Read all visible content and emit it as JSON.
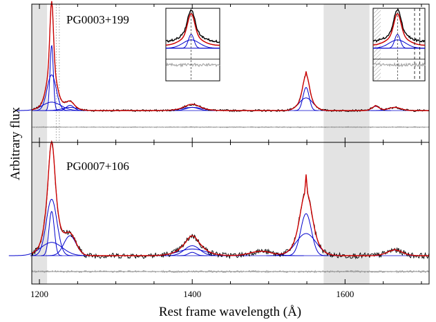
{
  "chart_data": {
    "type": "line",
    "ylabel": "Arbitrary flux",
    "xlabel": "Rest frame wavelength (Å)",
    "xlim": [
      1190,
      1710
    ],
    "xticks": [
      1200,
      1400,
      1600
    ],
    "shaded_regions": [
      [
        1190,
        1210
      ],
      [
        1572,
        1632
      ]
    ],
    "panels": [
      {
        "name": "PG0003+199",
        "series_colors": {
          "observed": "#000000",
          "model": "#cc0000",
          "components": "#0000cc",
          "residual": "#a6a6a6"
        },
        "lines": [
          {
            "center": 1216,
            "peak": 1.0,
            "components": [
              {
                "amp": 0.62,
                "width": 2.2
              },
              {
                "amp": 0.34,
                "width": 6
              },
              {
                "amp": 0.08,
                "width": 12
              }
            ]
          },
          {
            "center": 1240,
            "peak": 0.07,
            "components": [
              {
                "amp": 0.05,
                "width": 5
              },
              {
                "amp": 0.03,
                "width": 10
              }
            ]
          },
          {
            "center": 1400,
            "peak": 0.05,
            "components": [
              {
                "amp": 0.03,
                "width": 8
              },
              {
                "amp": 0.03,
                "width": 14
              }
            ]
          },
          {
            "center": 1549,
            "peak": 0.38,
            "components": [
              {
                "amp": 0.22,
                "width": 4
              },
              {
                "amp": 0.12,
                "width": 9
              }
            ]
          },
          {
            "center": 1640,
            "peak": 0.05,
            "components": [
              {
                "amp": 0.04,
                "width": 5
              }
            ]
          },
          {
            "center": 1665,
            "peak": 0.03,
            "components": [
              {
                "amp": 0.03,
                "width": 8
              }
            ]
          }
        ]
      },
      {
        "name": "PG0007+106",
        "series_colors": {
          "observed": "#000000",
          "model": "#cc0000",
          "components": "#0000cc",
          "residual": "#a6a6a6"
        },
        "lines": [
          {
            "center": 1216,
            "peak": 1.0,
            "components": [
              {
                "amp": 0.51,
                "width": 7
              },
              {
                "amp": 0.4,
                "width": 3.5
              },
              {
                "amp": 0.12,
                "width": 14
              }
            ]
          },
          {
            "center": 1240,
            "peak": 0.2,
            "components": [
              {
                "amp": 0.18,
                "width": 8
              }
            ]
          },
          {
            "center": 1400,
            "peak": 0.18,
            "components": [
              {
                "amp": 0.09,
                "width": 10
              },
              {
                "amp": 0.06,
                "width": 18
              },
              {
                "amp": 0.03,
                "width": 5
              }
            ]
          },
          {
            "center": 1490,
            "peak": 0.04,
            "components": [
              {
                "amp": 0.04,
                "width": 14
              }
            ]
          },
          {
            "center": 1549,
            "peak": 0.75,
            "components": [
              {
                "amp": 0.38,
                "width": 7
              },
              {
                "amp": 0.2,
                "width": 13
              }
            ]
          },
          {
            "center": 1665,
            "peak": 0.06,
            "components": [
              {
                "amp": 0.05,
                "width": 10
              }
            ]
          }
        ]
      }
    ]
  }
}
